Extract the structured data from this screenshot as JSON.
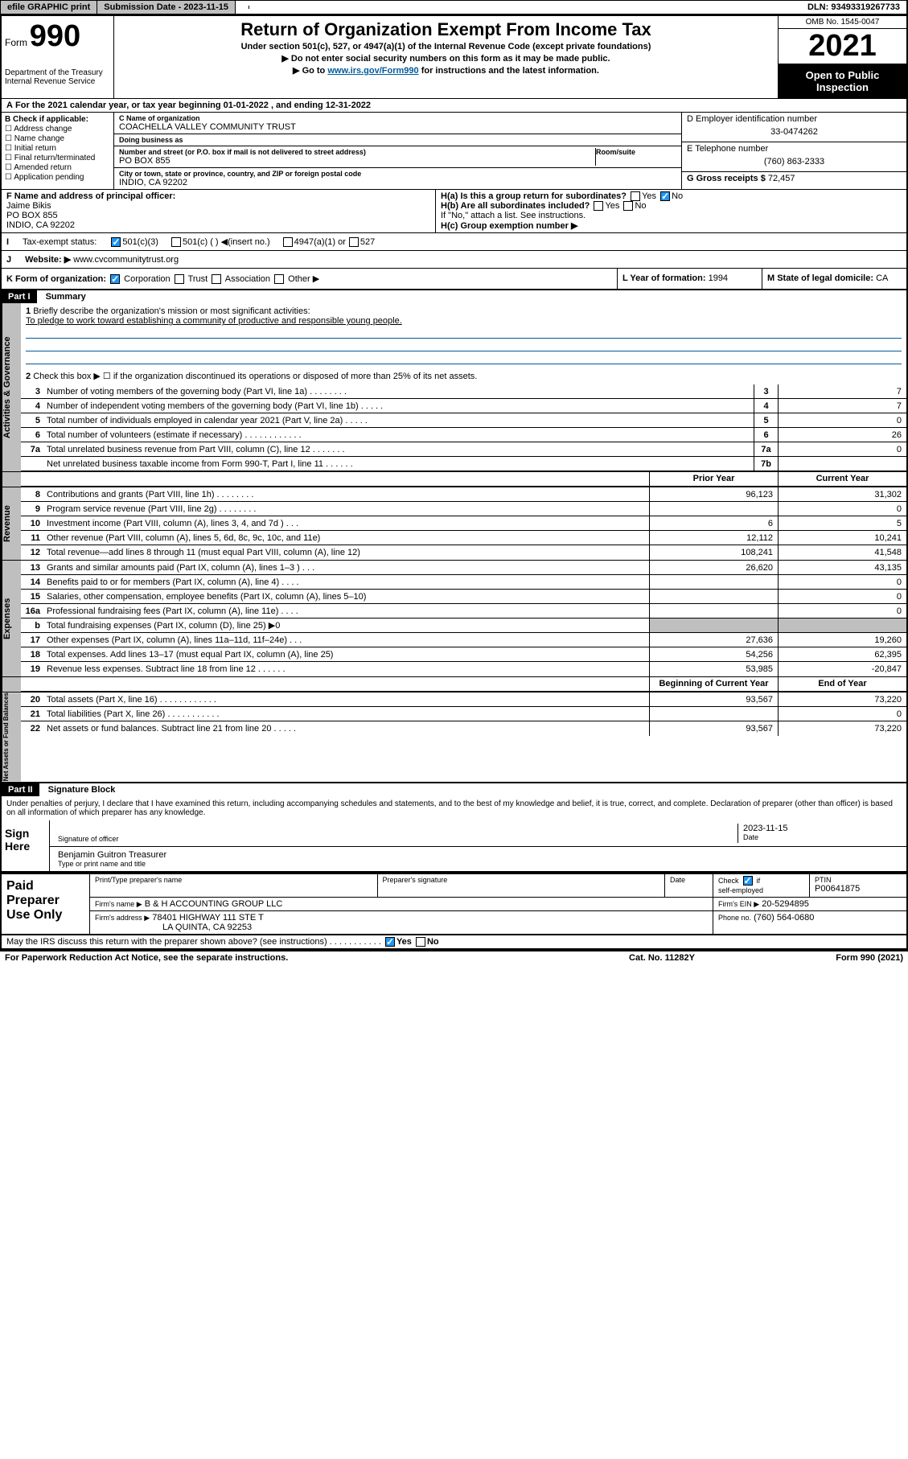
{
  "topbar": {
    "efile": "efile GRAPHIC print",
    "sub_label": "Submission Date - 2023-11-15",
    "dln": "DLN: 93493319267733"
  },
  "header": {
    "form": "Form",
    "num": "990",
    "dept": "Department of the Treasury",
    "irs": "Internal Revenue Service",
    "title": "Return of Organization Exempt From Income Tax",
    "sub1": "Under section 501(c), 527, or 4947(a)(1) of the Internal Revenue Code (except private foundations)",
    "sub2": "▶ Do not enter social security numbers on this form as it may be made public.",
    "sub3_pre": "▶ Go to ",
    "sub3_link": "www.irs.gov/Form990",
    "sub3_post": " for instructions and the latest information.",
    "omb": "OMB No. 1545-0047",
    "year": "2021",
    "inspect": "Open to Public Inspection"
  },
  "a": "For the 2021 calendar year, or tax year beginning 01-01-2022 , and ending 12-31-2022",
  "b": {
    "title": "B Check if applicable:",
    "opts": [
      "Address change",
      "Name change",
      "Initial return",
      "Final return/terminated",
      "Amended return",
      "Application pending"
    ]
  },
  "c": {
    "name_label": "C Name of organization",
    "name": "COACHELLA VALLEY COMMUNITY TRUST",
    "dba_label": "Doing business as",
    "dba": "",
    "addr_label": "Number and street (or P.O. box if mail is not delivered to street address)",
    "room_label": "Room/suite",
    "addr": "PO BOX 855",
    "city_label": "City or town, state or province, country, and ZIP or foreign postal code",
    "city": "INDIO, CA  92202"
  },
  "d": {
    "ein_label": "D Employer identification number",
    "ein": "33-0474262",
    "tel_label": "E Telephone number",
    "tel": "(760) 863-2333",
    "gross_label": "G Gross receipts $",
    "gross": "72,457"
  },
  "f": {
    "label": "F Name and address of principal officer:",
    "name": "Jaime Bikis",
    "addr1": "PO BOX 855",
    "addr2": "INDIO, CA  92202"
  },
  "h": {
    "ha": "H(a) Is this a group return for subordinates?",
    "hb": "H(b) Are all subordinates included?",
    "hb_note": "If \"No,\" attach a list. See instructions.",
    "hc": "H(c) Group exemption number ▶",
    "yes": "Yes",
    "no": "No"
  },
  "i": {
    "label": "Tax-exempt status:",
    "o1": "501(c)(3)",
    "o2": "501(c) (  ) ◀(insert no.)",
    "o3": "4947(a)(1) or",
    "o4": "527"
  },
  "j": {
    "label": "Website: ▶",
    "val": "www.cvcommunitytrust.org"
  },
  "k": {
    "label": "K Form of organization:",
    "o1": "Corporation",
    "o2": "Trust",
    "o3": "Association",
    "o4": "Other ▶"
  },
  "l": {
    "label": "L Year of formation:",
    "val": "1994"
  },
  "m": {
    "label": "M State of legal domicile:",
    "val": "CA"
  },
  "part1": {
    "hdr": "Part I",
    "title": "Summary",
    "l1": "Briefly describe the organization's mission or most significant activities:",
    "l1_val": "To pledge to work toward establishing a community of productive and responsible young people.",
    "l2": "Check this box ▶ ☐ if the organization discontinued its operations or disposed of more than 25% of its net assets.",
    "lines_gov": [
      {
        "n": "3",
        "d": "Number of voting members of the governing body (Part VI, line 1a)  .  .  .  .  .  .  .  .",
        "b": "3",
        "v": "7"
      },
      {
        "n": "4",
        "d": "Number of independent voting members of the governing body (Part VI, line 1b)  .  .  .  .  .",
        "b": "4",
        "v": "7"
      },
      {
        "n": "5",
        "d": "Total number of individuals employed in calendar year 2021 (Part V, line 2a)  .  .  .  .  .",
        "b": "5",
        "v": "0"
      },
      {
        "n": "6",
        "d": "Total number of volunteers (estimate if necessary)  .  .  .  .  .  .  .  .  .  .  .  .",
        "b": "6",
        "v": "26"
      },
      {
        "n": "7a",
        "d": "Total unrelated business revenue from Part VIII, column (C), line 12  .  .  .  .  .  .  .",
        "b": "7a",
        "v": "0"
      },
      {
        "n": "",
        "d": "Net unrelated business taxable income from Form 990-T, Part I, line 11  .  .  .  .  .  .",
        "b": "7b",
        "v": ""
      }
    ],
    "hdr_prior": "Prior Year",
    "hdr_curr": "Current Year",
    "revenue": [
      {
        "n": "8",
        "d": "Contributions and grants (Part VIII, line 1h)  .  .  .  .  .  .  .  .",
        "p": "96,123",
        "c": "31,302"
      },
      {
        "n": "9",
        "d": "Program service revenue (Part VIII, line 2g)  .  .  .  .  .  .  .  .",
        "p": "",
        "c": "0"
      },
      {
        "n": "10",
        "d": "Investment income (Part VIII, column (A), lines 3, 4, and 7d )  .  .  .",
        "p": "6",
        "c": "5"
      },
      {
        "n": "11",
        "d": "Other revenue (Part VIII, column (A), lines 5, 6d, 8c, 9c, 10c, and 11e)",
        "p": "12,112",
        "c": "10,241"
      },
      {
        "n": "12",
        "d": "Total revenue—add lines 8 through 11 (must equal Part VIII, column (A), line 12)",
        "p": "108,241",
        "c": "41,548"
      }
    ],
    "expenses": [
      {
        "n": "13",
        "d": "Grants and similar amounts paid (Part IX, column (A), lines 1–3 )  .  .  .",
        "p": "26,620",
        "c": "43,135"
      },
      {
        "n": "14",
        "d": "Benefits paid to or for members (Part IX, column (A), line 4)  .  .  .  .",
        "p": "",
        "c": "0"
      },
      {
        "n": "15",
        "d": "Salaries, other compensation, employee benefits (Part IX, column (A), lines 5–10)",
        "p": "",
        "c": "0"
      },
      {
        "n": "16a",
        "d": "Professional fundraising fees (Part IX, column (A), line 11e)  .  .  .  .",
        "p": "",
        "c": "0"
      },
      {
        "n": "b",
        "d": "Total fundraising expenses (Part IX, column (D), line 25) ▶0",
        "p": "shade",
        "c": "shade"
      },
      {
        "n": "17",
        "d": "Other expenses (Part IX, column (A), lines 11a–11d, 11f–24e)  .  .  .",
        "p": "27,636",
        "c": "19,260"
      },
      {
        "n": "18",
        "d": "Total expenses. Add lines 13–17 (must equal Part IX, column (A), line 25)",
        "p": "54,256",
        "c": "62,395"
      },
      {
        "n": "19",
        "d": "Revenue less expenses. Subtract line 18 from line 12  .  .  .  .  .  .",
        "p": "53,985",
        "c": "-20,847"
      }
    ],
    "hdr_begin": "Beginning of Current Year",
    "hdr_end": "End of Year",
    "net": [
      {
        "n": "20",
        "d": "Total assets (Part X, line 16)  .  .  .  .  .  .  .  .  .  .  .  .",
        "p": "93,567",
        "c": "73,220"
      },
      {
        "n": "21",
        "d": "Total liabilities (Part X, line 26)  .  .  .  .  .  .  .  .  .  .  .",
        "p": "",
        "c": "0"
      },
      {
        "n": "22",
        "d": "Net assets or fund balances. Subtract line 21 from line 20  .  .  .  .  .",
        "p": "93,567",
        "c": "73,220"
      }
    ],
    "tab_gov": "Activities & Governance",
    "tab_rev": "Revenue",
    "tab_exp": "Expenses",
    "tab_net": "Net Assets or Fund Balances"
  },
  "part2": {
    "hdr": "Part II",
    "title": "Signature Block",
    "decl": "Under penalties of perjury, I declare that I have examined this return, including accompanying schedules and statements, and to the best of my knowledge and belief, it is true, correct, and complete. Declaration of preparer (other than officer) is based on all information of which preparer has any knowledge.",
    "sign_here": "Sign Here",
    "sig_officer": "Signature of officer",
    "date": "Date",
    "date_val": "2023-11-15",
    "name_title": "Benjamin Guitron Treasurer",
    "type_name": "Type or print name and title",
    "paid": "Paid Preparer Use Only",
    "print_name": "Print/Type preparer's name",
    "prep_sig": "Preparer's signature",
    "check_if": "Check",
    "self_emp": "self-employed",
    "ptin": "PTIN",
    "ptin_val": "P00641875",
    "firm_name": "Firm's name ▶",
    "firm_name_val": "B & H ACCOUNTING GROUP LLC",
    "firm_ein": "Firm's EIN ▶",
    "firm_ein_val": "20-5294895",
    "firm_addr": "Firm's address ▶",
    "firm_addr_val1": "78401 HIGHWAY 111 STE T",
    "firm_addr_val2": "LA QUINTA, CA  92253",
    "phone": "Phone no.",
    "phone_val": "(760) 564-0680",
    "discuss": "May the IRS discuss this return with the preparer shown above? (see instructions)  .  .  .  .  .  .  .  .  .  .  ."
  },
  "footer": {
    "pra": "For Paperwork Reduction Act Notice, see the separate instructions.",
    "cat": "Cat. No. 11282Y",
    "form": "Form 990 (2021)"
  }
}
